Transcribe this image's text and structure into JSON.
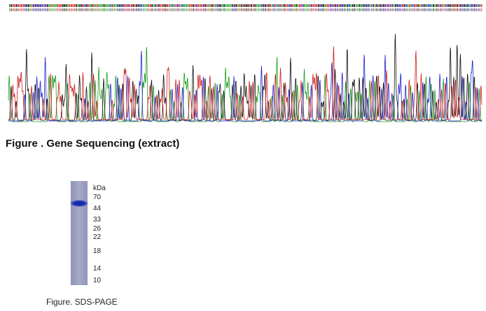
{
  "sequencing": {
    "caption": "Figure . Gene Sequencing (extract)"
  },
  "gel": {
    "unit": "kDa",
    "markers": [
      "70",
      "44",
      "33",
      "26",
      "22",
      "18",
      "14",
      "10"
    ],
    "caption": "Figure. SDS-PAGE"
  }
}
